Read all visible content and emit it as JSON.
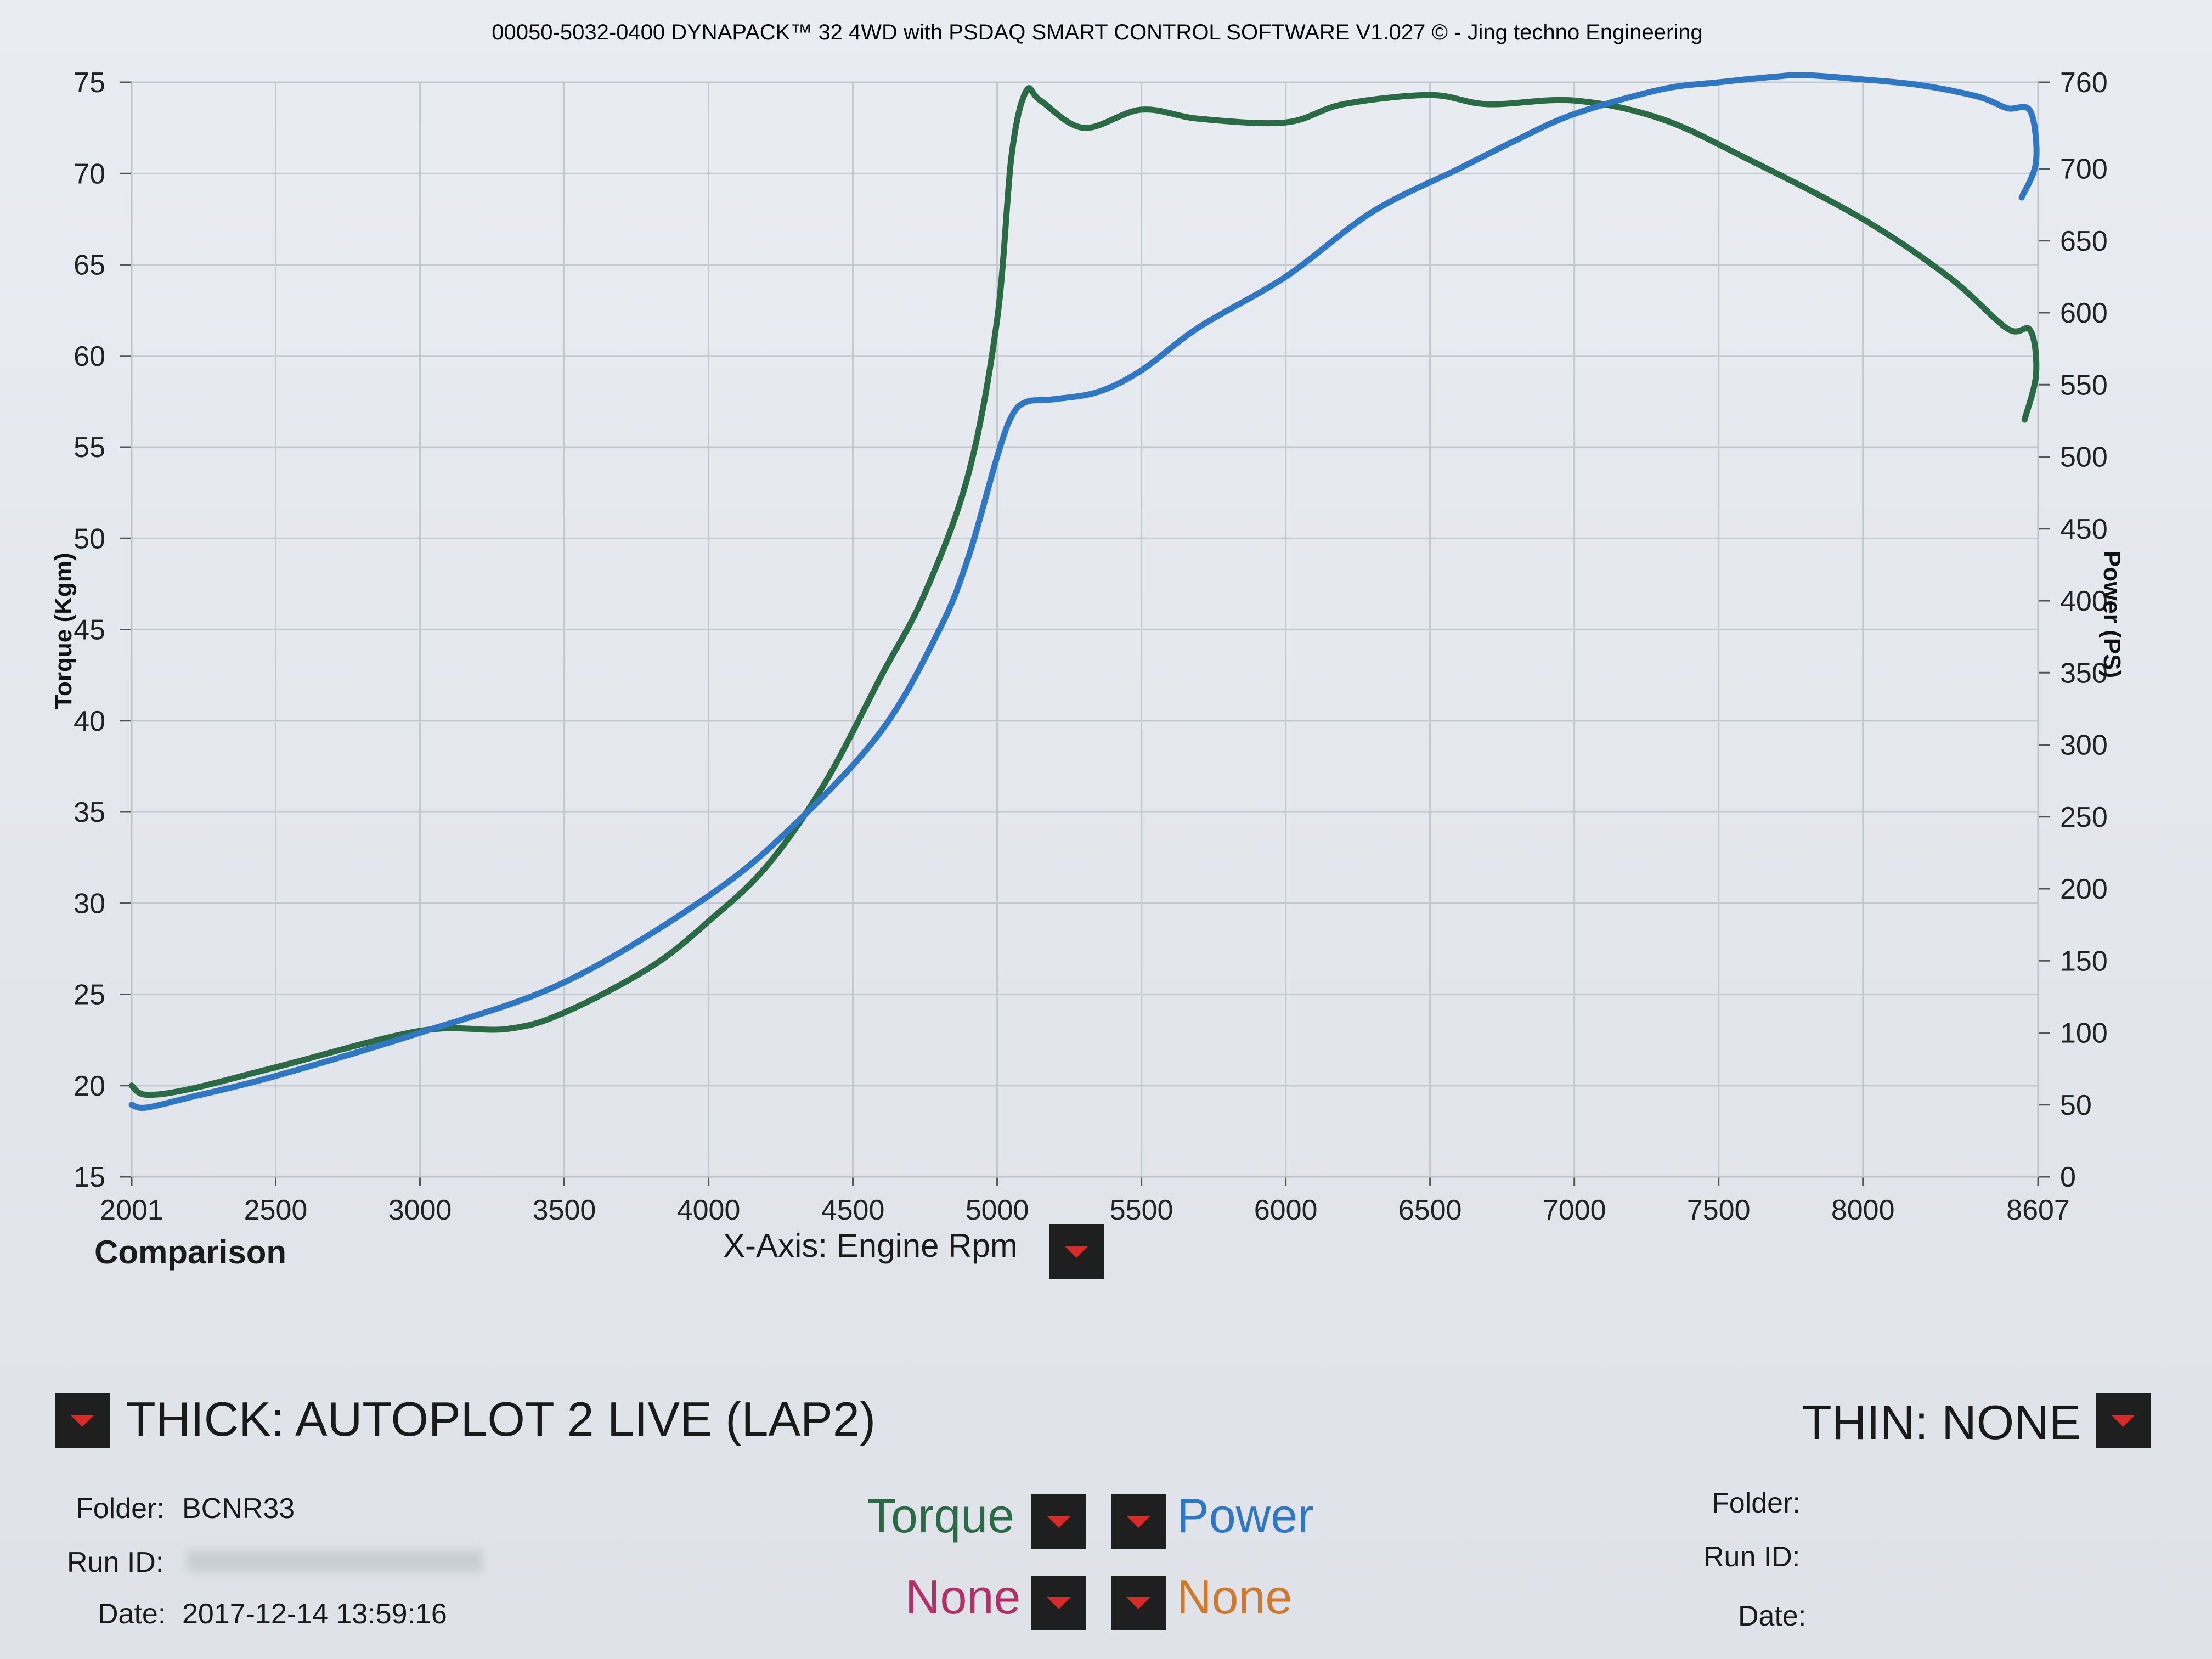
{
  "header": {
    "title": "00050-5032-0400 DYNAPACK™ 32 4WD with PSDAQ SMART CONTROL SOFTWARE V1.027 © - Jing techno Engineering"
  },
  "chart_data": {
    "type": "line",
    "xlabel": "X-Axis: Engine Rpm",
    "ylabel": "Torque (Kgm)",
    "y2label": "Power (PS)",
    "xlim": [
      2001,
      8607
    ],
    "ylim": [
      15,
      75
    ],
    "y2lim": [
      0,
      760
    ],
    "x_ticks": [
      "2001",
      "2500",
      "3000",
      "3500",
      "4000",
      "4500",
      "5000",
      "5500",
      "6000",
      "6500",
      "7000",
      "7500",
      "8000",
      "8607"
    ],
    "y_ticks": [
      "15",
      "20",
      "25",
      "30",
      "35",
      "40",
      "45",
      "50",
      "55",
      "60",
      "65",
      "70",
      "75"
    ],
    "y2_ticks": [
      "0",
      "50",
      "100",
      "150",
      "200",
      "250",
      "300",
      "350",
      "400",
      "450",
      "500",
      "550",
      "600",
      "650",
      "700",
      "760"
    ],
    "grid": true,
    "series": [
      {
        "name": "Torque",
        "axis": "left",
        "color": "#2a6a45",
        "x": [
          2001,
          2050,
          2200,
          2500,
          3000,
          3300,
          3500,
          3800,
          4000,
          4200,
          4400,
          4600,
          4750,
          4900,
          5000,
          5050,
          5100,
          5150,
          5300,
          5500,
          5700,
          6000,
          6200,
          6500,
          6700,
          7000,
          7300,
          7600,
          8000,
          8300,
          8500,
          8580,
          8600,
          8560
        ],
        "y": [
          20.0,
          19.5,
          19.8,
          21.0,
          23.0,
          23.1,
          24.0,
          26.5,
          29.0,
          32.0,
          36.5,
          42.5,
          47.0,
          53.5,
          62.0,
          71.0,
          74.5,
          74.0,
          72.5,
          73.5,
          73.0,
          72.8,
          73.8,
          74.3,
          73.8,
          74.0,
          73.0,
          70.8,
          67.5,
          64.3,
          61.5,
          61.4,
          59.0,
          56.5
        ]
      },
      {
        "name": "Power",
        "axis": "right",
        "color": "#2f77c2",
        "x": [
          2001,
          2050,
          2200,
          2500,
          3000,
          3500,
          4000,
          4300,
          4600,
          4800,
          4900,
          5000,
          5050,
          5100,
          5200,
          5350,
          5500,
          5700,
          6000,
          6300,
          6600,
          6800,
          7000,
          7300,
          7500,
          7700,
          7800,
          8000,
          8200,
          8400,
          8500,
          8580,
          8600,
          8550
        ],
        "y": [
          50,
          48,
          55,
          70,
          100,
          135,
          195,
          245,
          310,
          380,
          430,
          500,
          528,
          538,
          540,
          545,
          560,
          590,
          625,
          670,
          700,
          720,
          738,
          755,
          760,
          764,
          765,
          762,
          758,
          750,
          742,
          740,
          705,
          680
        ]
      }
    ]
  },
  "chart_labels": {
    "comparison": "Comparison"
  },
  "thick": {
    "label": "THICK: AUTOPLOT 2 LIVE (LAP2)",
    "folder_label": "Folder:",
    "folder_value": "BCNR33",
    "run_label": "Run ID:",
    "date_label": "Date:",
    "date_value": "2017-12-14 13:59:16"
  },
  "thin": {
    "label": "THIN: NONE",
    "folder_label": "Folder:",
    "run_label": "Run ID:",
    "date_label": "Date:"
  },
  "legend": {
    "torque": "Torque",
    "power": "Power",
    "none_left": "None",
    "none_right": "None",
    "torque_color": "#2a6a45",
    "power_color": "#2f77c2",
    "none_left_color": "#b0306a",
    "none_right_color": "#cc7a30"
  }
}
